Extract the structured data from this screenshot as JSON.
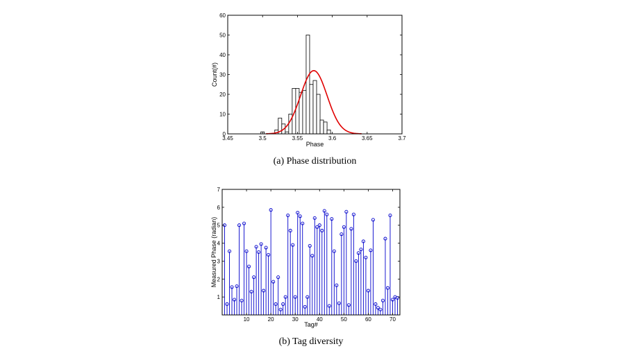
{
  "chart_data": [
    {
      "type": "bar",
      "subtype": "histogram_with_fit",
      "caption": "(a) Phase distribution",
      "xlabel": "Phase",
      "ylabel": "Count(#)",
      "xlim": [
        3.45,
        3.7
      ],
      "ylim": [
        0,
        60
      ],
      "xticks": [
        3.45,
        3.5,
        3.55,
        3.6,
        3.65,
        3.7
      ],
      "xtick_labels": [
        "3.45",
        "3.5",
        "3.55",
        "3.6",
        "3.65",
        "3.7"
      ],
      "yticks": [
        0,
        10,
        20,
        30,
        40,
        50,
        60
      ],
      "ytick_labels": [
        "0",
        "10",
        "20",
        "30",
        "40",
        "50",
        "60"
      ],
      "bin_edges": [
        3.4975,
        3.5025,
        3.5075,
        3.5125,
        3.5175,
        3.5225,
        3.5275,
        3.5325,
        3.5375,
        3.5425,
        3.5475,
        3.5525,
        3.5575,
        3.5625,
        3.5675,
        3.5725,
        3.5775,
        3.5825,
        3.5875,
        3.5925,
        3.5975,
        3.6025,
        3.6075,
        3.6125,
        3.6175,
        3.6225
      ],
      "counts": [
        1,
        0,
        0,
        0,
        2,
        8,
        5,
        1,
        10,
        23,
        23,
        21,
        22,
        50,
        25,
        27,
        20,
        7,
        6,
        2,
        0,
        0,
        0,
        0,
        0
      ],
      "fit": {
        "type": "gaussian",
        "mean": 3.5735,
        "sigma": 0.019,
        "peak": 32,
        "x_range": [
          3.505,
          3.642
        ],
        "color": "#e00000"
      }
    },
    {
      "type": "scatter",
      "subtype": "stem",
      "caption": "(b) Tag diversity",
      "xlabel": "Tag#",
      "ylabel": "Measured Phase (radian)",
      "xlim": [
        0,
        73
      ],
      "ylim": [
        0,
        7
      ],
      "xticks": [
        10,
        20,
        30,
        40,
        50,
        60,
        70
      ],
      "xtick_labels": [
        "10",
        "20",
        "30",
        "40",
        "50",
        "60",
        "70"
      ],
      "yticks": [
        1,
        2,
        3,
        4,
        5,
        6,
        7
      ],
      "ytick_labels": [
        "1",
        "2",
        "3",
        "4",
        "5",
        "6",
        "7"
      ],
      "color": "#0000cc",
      "x": [
        1,
        2,
        3,
        4,
        5,
        6,
        7,
        8,
        9,
        10,
        11,
        12,
        13,
        14,
        15,
        16,
        17,
        18,
        19,
        20,
        21,
        22,
        23,
        24,
        25,
        26,
        27,
        28,
        29,
        30,
        31,
        32,
        33,
        34,
        35,
        36,
        37,
        38,
        39,
        40,
        41,
        42,
        43,
        44,
        45,
        46,
        47,
        48,
        49,
        50,
        51,
        52,
        53,
        54,
        55,
        56,
        57,
        58,
        59,
        60,
        61,
        62,
        63,
        64,
        65,
        66,
        67,
        68,
        69,
        70,
        71,
        72
      ],
      "y": [
        5.0,
        0.6,
        3.55,
        1.55,
        0.85,
        1.6,
        5.0,
        0.8,
        5.1,
        3.55,
        2.7,
        1.3,
        2.1,
        3.8,
        3.5,
        3.95,
        1.35,
        3.75,
        3.35,
        5.85,
        1.85,
        0.6,
        2.1,
        0.3,
        0.6,
        1.0,
        5.55,
        4.7,
        3.9,
        1.0,
        5.7,
        5.5,
        5.1,
        0.45,
        1.0,
        3.85,
        3.3,
        5.4,
        4.9,
        5.0,
        4.7,
        5.8,
        5.6,
        0.5,
        5.35,
        3.55,
        1.65,
        0.65,
        4.5,
        4.9,
        5.75,
        0.55,
        4.8,
        5.6,
        3.0,
        3.45,
        3.65,
        4.1,
        3.2,
        1.35,
        3.6,
        5.3,
        0.6,
        0.4,
        0.3,
        0.8,
        4.25,
        1.5,
        5.55,
        0.85,
        1.0,
        0.95
      ]
    }
  ]
}
